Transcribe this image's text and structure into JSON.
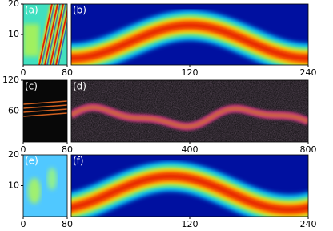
{
  "chart_data": [
    {
      "type": "heatmap",
      "label": "(a)",
      "xlim": [
        0,
        80
      ],
      "xticks": [
        0,
        80
      ],
      "ylim": [
        0,
        20
      ],
      "yticks": [
        10,
        20
      ]
    },
    {
      "type": "heatmap",
      "label": "(b)",
      "xlim": [
        0,
        240
      ],
      "xticks": [
        120,
        240
      ],
      "ylim": [
        0,
        20
      ]
    },
    {
      "type": "heatmap",
      "label": "(c)",
      "xlim": [
        0,
        80
      ],
      "xticks": [
        0,
        80
      ],
      "ylim": [
        0,
        120
      ],
      "yticks": [
        60,
        120
      ]
    },
    {
      "type": "heatmap",
      "label": "(d)",
      "xlim": [
        0,
        800
      ],
      "xticks": [
        400,
        800
      ],
      "ylim": [
        0,
        120
      ]
    },
    {
      "type": "heatmap",
      "label": "(e)",
      "xlim": [
        0,
        80
      ],
      "xticks": [
        0,
        80
      ],
      "ylim": [
        0,
        20
      ],
      "yticks": [
        10,
        20
      ]
    },
    {
      "type": "heatmap",
      "label": "(f)",
      "xlim": [
        0,
        240
      ],
      "xticks": [
        120,
        240
      ],
      "ylim": [
        0,
        20
      ]
    }
  ]
}
